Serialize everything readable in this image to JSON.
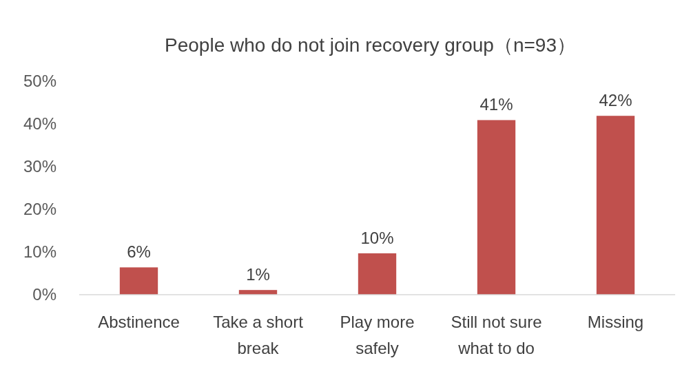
{
  "chart_data": {
    "type": "bar",
    "title": "People who do not join recovery group（n=93）",
    "categories": [
      "Abstinence",
      "Take a short break",
      "Play more safely",
      "Still not sure what to do",
      "Missing"
    ],
    "values": [
      6.4,
      1.1,
      9.7,
      40.9,
      41.9
    ],
    "value_labels": [
      "6%",
      "1%",
      "10%",
      "41%",
      "42%"
    ],
    "color": "#c0504d",
    "ylim": [
      0,
      50
    ],
    "yticks": [
      {
        "value": 0,
        "label": "0%"
      },
      {
        "value": 10,
        "label": "10%"
      },
      {
        "value": 20,
        "label": "20%"
      },
      {
        "value": 30,
        "label": "30%"
      },
      {
        "value": 40,
        "label": "40%"
      },
      {
        "value": 50,
        "label": "50%"
      }
    ]
  }
}
